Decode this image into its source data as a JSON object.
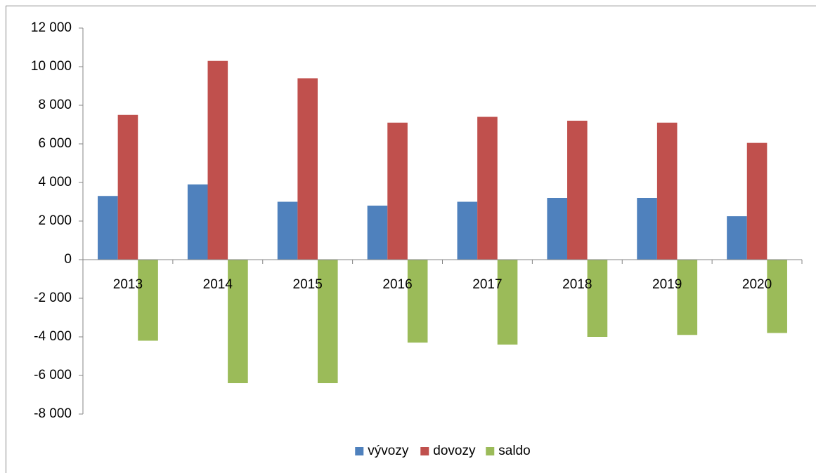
{
  "chart_data": {
    "type": "bar",
    "categories": [
      "2013",
      "2014",
      "2015",
      "2016",
      "2017",
      "2018",
      "2019",
      "2020"
    ],
    "series": [
      {
        "name": "vývozy",
        "color": "#4f81bd",
        "values": [
          3300,
          3900,
          3000,
          2800,
          3000,
          3200,
          3200,
          2250
        ]
      },
      {
        "name": "dovozy",
        "color": "#c0504d",
        "values": [
          7500,
          10300,
          9400,
          7100,
          7400,
          7200,
          7100,
          6050
        ]
      },
      {
        "name": "saldo",
        "color": "#9bbb59",
        "values": [
          -4200,
          -6400,
          -6400,
          -4300,
          -4400,
          -4000,
          -3900,
          -3800
        ]
      }
    ],
    "ylim": [
      -8000,
      12000
    ],
    "yticks": [
      {
        "value": -8000,
        "label": "-8 000"
      },
      {
        "value": -6000,
        "label": "-6 000"
      },
      {
        "value": -4000,
        "label": "-4 000"
      },
      {
        "value": -2000,
        "label": "-2 000"
      },
      0,
      {
        "value": 2000,
        "label": "2 000"
      },
      {
        "value": 4000,
        "label": "4 000"
      },
      {
        "value": 6000,
        "label": "6 000"
      },
      {
        "value": 8000,
        "label": "8 000"
      },
      {
        "value": 10000,
        "label": "10 000"
      },
      {
        "value": 12000,
        "label": "12 000"
      }
    ],
    "legend": "bottom"
  }
}
